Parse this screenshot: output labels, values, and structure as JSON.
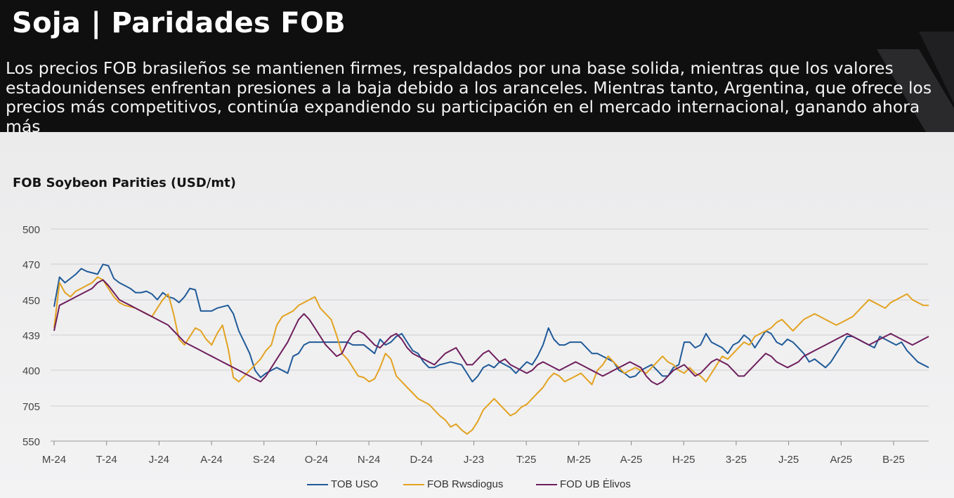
{
  "header": {
    "title": "Soja | Paridades FOB",
    "subtitle": "Los precios FOB brasileños se mantienen firmes, respaldados por una base solida, mientras que los valores estadounidenses enfrentan presiones a la baja debido a los aranceles. Mientras tanto, Argentina, que ofrece los precios más competitivos, continúa expandiendo su participación en el mercado internacional, ganando ahora más"
  },
  "chart_data": {
    "type": "line",
    "title": "FOB Soybeon Parities (USD/mt)",
    "y_ticks": [
      "500",
      "470",
      "450",
      "439",
      "400",
      "705",
      "550"
    ],
    "x_ticks": [
      "M-24",
      "T-24",
      "J-24",
      "A-24",
      "S-24",
      "O-24",
      "N-24",
      "D-24",
      "J-23",
      "T:25",
      "M-25",
      "A-25",
      "H-25",
      "3-25",
      "J-25",
      "Ar25",
      "B-25"
    ],
    "grid": true,
    "legend_position": "bottom",
    "series": [
      {
        "name": "TOB USO",
        "color": "#1f5a98",
        "values": [
          445,
          466,
          462,
          465,
          468,
          472,
          470,
          469,
          468,
          475,
          474,
          465,
          462,
          460,
          458,
          455,
          455,
          456,
          454,
          450,
          455,
          452,
          451,
          448,
          452,
          458,
          457,
          442,
          442,
          442,
          444,
          445,
          446,
          440,
          428,
          420,
          412,
          400,
          395,
          398,
          400,
          402,
          400,
          398,
          410,
          412,
          418,
          420,
          420,
          420,
          420,
          420,
          420,
          420,
          420,
          418,
          418,
          418,
          415,
          412,
          422,
          418,
          420,
          424,
          426,
          420,
          414,
          412,
          406,
          402,
          402,
          404,
          405,
          406,
          405,
          404,
          398,
          392,
          396,
          402,
          404,
          402,
          406,
          404,
          402,
          398,
          402,
          406,
          404,
          410,
          418,
          430,
          422,
          418,
          418,
          420,
          420,
          420,
          416,
          412,
          412,
          410,
          408,
          406,
          400,
          398,
          395,
          396,
          400,
          402,
          404,
          400,
          396,
          396,
          402,
          404,
          420,
          420,
          416,
          418,
          426,
          420,
          418,
          416,
          412,
          418,
          420,
          425,
          422,
          416,
          422,
          428,
          426,
          420,
          418,
          422,
          420,
          416,
          412,
          406,
          408,
          405,
          402,
          406,
          412,
          418,
          424,
          424,
          422,
          420,
          418,
          416,
          424,
          422,
          420,
          418,
          420,
          414,
          410,
          406,
          404,
          402
        ]
      },
      {
        "name": "FOB Rwsdiogus",
        "color": "#e3a220",
        "values": [
          430,
          462,
          455,
          452,
          456,
          458,
          460,
          462,
          466,
          464,
          458,
          452,
          448,
          446,
          445,
          444,
          442,
          440,
          438,
          444,
          450,
          454,
          440,
          422,
          418,
          424,
          430,
          428,
          422,
          418,
          426,
          432,
          416,
          395,
          392,
          396,
          400,
          404,
          408,
          414,
          418,
          432,
          438,
          440,
          442,
          446,
          448,
          450,
          452,
          444,
          440,
          436,
          425,
          412,
          408,
          402,
          396,
          395,
          392,
          394,
          402,
          412,
          408,
          396,
          392,
          388,
          384,
          380,
          378,
          376,
          372,
          368,
          365,
          360,
          362,
          358,
          355,
          358,
          364,
          372,
          376,
          380,
          376,
          372,
          368,
          370,
          374,
          376,
          380,
          384,
          388,
          394,
          398,
          396,
          392,
          394,
          396,
          398,
          394,
          390,
          400,
          404,
          410,
          406,
          402,
          398,
          400,
          402,
          400,
          398,
          402,
          406,
          410,
          406,
          404,
          400,
          398,
          402,
          398,
          396,
          392,
          398,
          404,
          410,
          408,
          412,
          416,
          420,
          418,
          424,
          426,
          428,
          430,
          434,
          436,
          432,
          428,
          432,
          436,
          438,
          440,
          438,
          436,
          434,
          432,
          434,
          436,
          438,
          442,
          446,
          450,
          448,
          446,
          444,
          448,
          450,
          452,
          454,
          450,
          448,
          446,
          446
        ]
      },
      {
        "name": "FOD UB Ėlivos",
        "color": "#6e1f5d",
        "values": [
          428,
          446,
          448,
          450,
          452,
          454,
          456,
          458,
          462,
          464,
          460,
          455,
          450,
          448,
          446,
          444,
          442,
          440,
          438,
          436,
          434,
          432,
          428,
          424,
          420,
          418,
          416,
          414,
          412,
          410,
          408,
          406,
          404,
          402,
          400,
          398,
          396,
          394,
          392,
          396,
          402,
          408,
          414,
          420,
          428,
          436,
          440,
          436,
          430,
          424,
          418,
          414,
          410,
          412,
          420,
          426,
          428,
          426,
          422,
          418,
          416,
          420,
          424,
          426,
          422,
          416,
          412,
          410,
          408,
          406,
          404,
          408,
          412,
          414,
          416,
          410,
          404,
          404,
          408,
          412,
          414,
          410,
          406,
          408,
          404,
          402,
          400,
          398,
          400,
          404,
          406,
          404,
          402,
          400,
          402,
          404,
          406,
          404,
          402,
          400,
          398,
          396,
          398,
          400,
          402,
          404,
          406,
          404,
          402,
          396,
          392,
          390,
          392,
          396,
          400,
          402,
          404,
          400,
          396,
          398,
          402,
          406,
          408,
          406,
          404,
          400,
          396,
          396,
          400,
          404,
          408,
          412,
          410,
          406,
          404,
          402,
          404,
          406,
          410,
          412,
          414,
          416,
          418,
          420,
          422,
          424,
          426,
          424,
          422,
          420,
          418,
          420,
          422,
          424,
          426,
          424,
          422,
          420,
          418,
          420,
          422,
          424
        ]
      }
    ]
  }
}
